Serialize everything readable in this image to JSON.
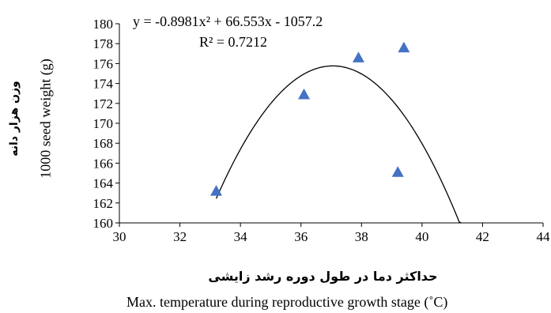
{
  "chart_data": {
    "type": "scatter",
    "x_ticks": [
      "30",
      "32",
      "34",
      "36",
      "38",
      "40",
      "42",
      "44"
    ],
    "y_ticks": [
      "160",
      "162",
      "164",
      "166",
      "168",
      "170",
      "172",
      "174",
      "176",
      "178",
      "180"
    ],
    "xlim": [
      30,
      44
    ],
    "ylim": [
      160,
      180
    ],
    "points": [
      {
        "x": 33.2,
        "y": 163.2
      },
      {
        "x": 36.1,
        "y": 172.9
      },
      {
        "x": 37.9,
        "y": 176.6
      },
      {
        "x": 39.4,
        "y": 177.6
      },
      {
        "x": 39.2,
        "y": 165.1
      }
    ],
    "trendline": {
      "type": "polynomial",
      "coefficients": [
        -0.8981,
        66.553,
        -1057.2
      ],
      "x_range": [
        33.2,
        41.3
      ],
      "equation_label": "y = -0.8981x² + 66.553x - 1057.2",
      "r2_label": "R² = 0.7212"
    },
    "xlabel_fa": "حداکثر دما در طول دوره رشد زایشی",
    "xlabel_en": "Max. temperature during reproductive growth stage (˚C)",
    "ylabel_fa": "وزن هزار دانه",
    "ylabel_en": "1000 seed weight (g)",
    "grid": false,
    "marker_color": "#4472C4",
    "line_color": "#000000"
  }
}
